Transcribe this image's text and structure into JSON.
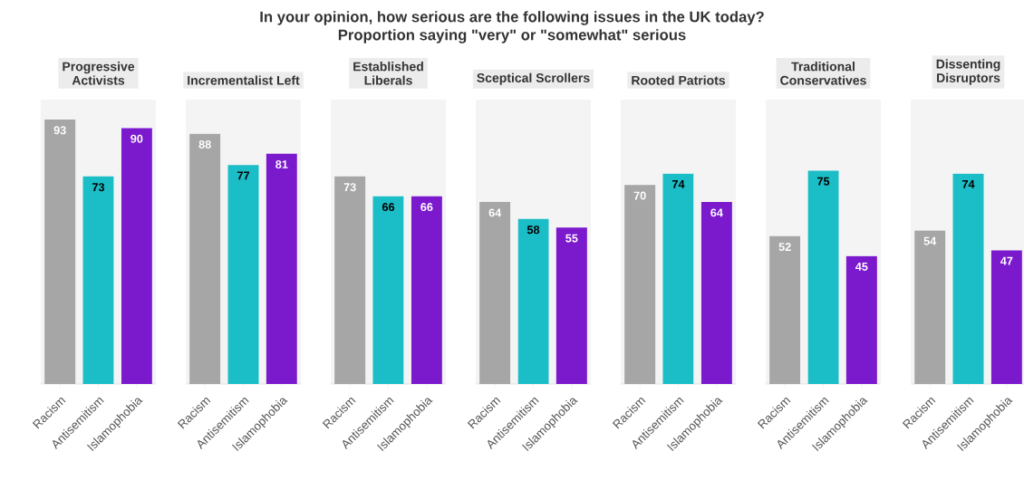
{
  "chart_data": [
    {
      "type": "other",
      "title": "In your opinion, how serious are the following issues in the UK today?",
      "subtitle": "Proportion saying \"very\" or \"somewhat\" serious"
    },
    {
      "type": "bar",
      "title": "Progressive Activists",
      "categories": [
        "Racism",
        "Antisemitism",
        "Islamophobia"
      ],
      "values": [
        93,
        73,
        90
      ],
      "colors": [
        "#a6a6a6",
        "#1bbdc6",
        "#7b1acd"
      ],
      "data_labels": true,
      "ylim": [
        0,
        100
      ],
      "tick_labels": "x"
    },
    {
      "type": "bar",
      "title": "Incrementalist Left",
      "categories": [
        "Racism",
        "Antisemitism",
        "Islamophobia"
      ],
      "values": [
        88,
        77,
        81
      ],
      "colors": [
        "#a6a6a6",
        "#1bbdc6",
        "#7b1acd"
      ],
      "data_labels": true,
      "ylim": [
        0,
        100
      ],
      "tick_labels": "x"
    },
    {
      "type": "bar",
      "title": "Established Liberals",
      "categories": [
        "Racism",
        "Antisemitism",
        "Islamophobia"
      ],
      "values": [
        73,
        66,
        66
      ],
      "colors": [
        "#a6a6a6",
        "#1bbdc6",
        "#7b1acd"
      ],
      "data_labels": true,
      "ylim": [
        0,
        100
      ],
      "tick_labels": "x"
    },
    {
      "type": "bar",
      "title": "Sceptical Scrollers",
      "categories": [
        "Racism",
        "Antisemitism",
        "Islamophobia"
      ],
      "values": [
        64,
        58,
        55
      ],
      "colors": [
        "#a6a6a6",
        "#1bbdc6",
        "#7b1acd"
      ],
      "data_labels": true,
      "ylim": [
        0,
        100
      ],
      "tick_labels": "x"
    },
    {
      "type": "bar",
      "title": "Rooted Patriots",
      "categories": [
        "Racism",
        "Antisemitism",
        "Islamophobia"
      ],
      "values": [
        70,
        74,
        64
      ],
      "colors": [
        "#a6a6a6",
        "#1bbdc6",
        "#7b1acd"
      ],
      "data_labels": true,
      "ylim": [
        0,
        100
      ],
      "tick_labels": "x"
    },
    {
      "type": "bar",
      "title": "Traditional Conservatives",
      "categories": [
        "Racism",
        "Antisemitism",
        "Islamophobia"
      ],
      "values": [
        52,
        75,
        45
      ],
      "colors": [
        "#a6a6a6",
        "#1bbdc6",
        "#7b1acd"
      ],
      "data_labels": true,
      "ylim": [
        0,
        100
      ],
      "tick_labels": "x"
    },
    {
      "type": "bar",
      "title": "Dissenting Disruptors",
      "categories": [
        "Racism",
        "Antisemitism",
        "Islamophobia"
      ],
      "values": [
        54,
        74,
        47
      ],
      "colors": [
        "#a6a6a6",
        "#1bbdc6",
        "#7b1acd"
      ],
      "data_labels": true,
      "ylim": [
        0,
        100
      ],
      "tick_labels": "x"
    }
  ]
}
